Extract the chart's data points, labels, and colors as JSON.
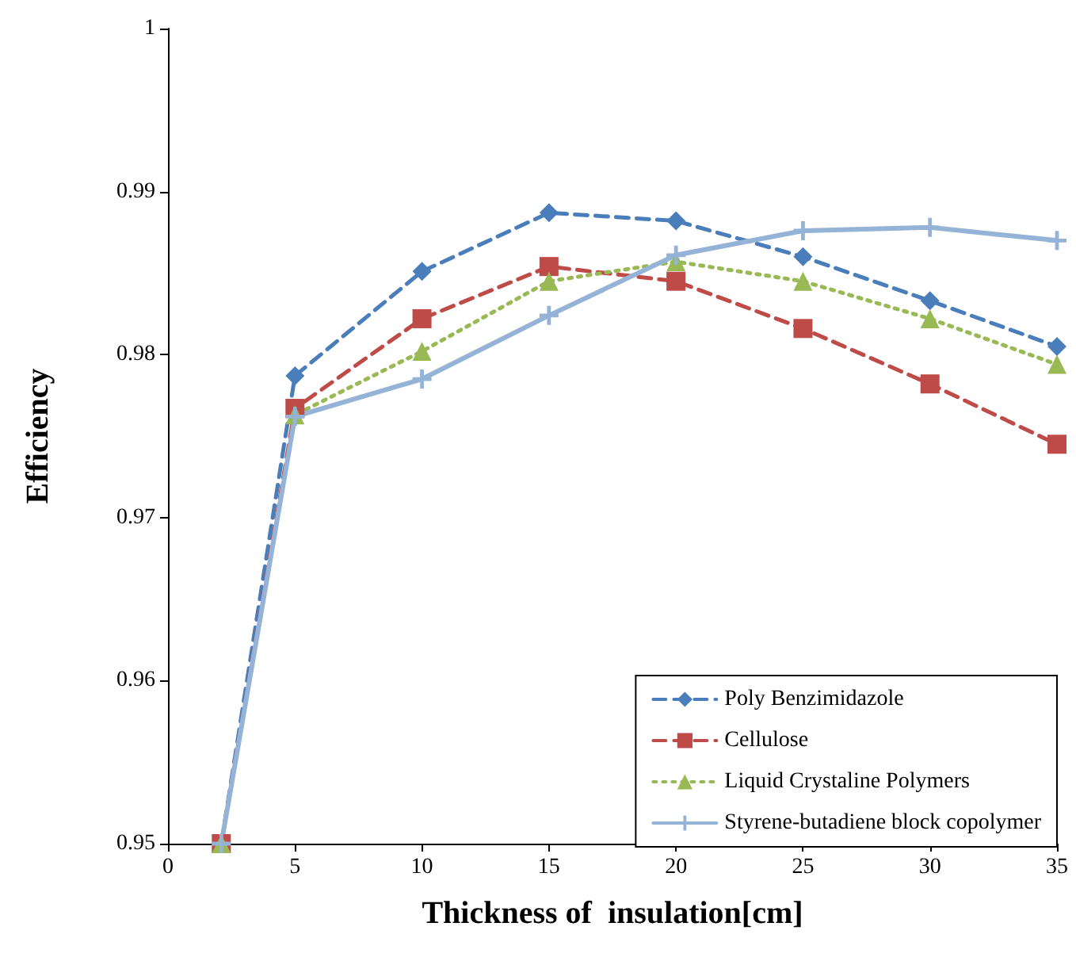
{
  "chart_data": {
    "type": "line",
    "xlabel": "Thickness of  insulation[cm]",
    "ylabel": "Efficiency",
    "x": [
      2.1,
      5,
      10,
      15,
      20,
      25,
      30,
      35
    ],
    "series": [
      {
        "name": "Poly Benzimidazole",
        "color": "#4a7ebb",
        "marker": "diamond",
        "line_style": "dashed",
        "values": [
          0.95,
          0.9787,
          0.9851,
          0.9887,
          0.9882,
          0.986,
          0.9833,
          0.9805
        ]
      },
      {
        "name": "Cellulose",
        "color": "#be4b48",
        "marker": "square",
        "line_style": "dashed",
        "values": [
          0.95,
          0.9767,
          0.9822,
          0.9854,
          0.9845,
          0.9816,
          0.9782,
          0.9745
        ]
      },
      {
        "name": "Liquid Crystaline Polymers",
        "color": "#98b954",
        "marker": "triangle",
        "line_style": "dotted",
        "values": [
          0.95,
          0.9763,
          0.9802,
          0.9845,
          0.9857,
          0.9845,
          0.9822,
          0.9794
        ]
      },
      {
        "name": "Styrene-butadiene block copolymer",
        "color": "#95b3d7",
        "marker": "cross",
        "line_style": "solid",
        "values": [
          0.95,
          0.9762,
          0.9785,
          0.9824,
          0.9861,
          0.9876,
          0.9878,
          0.987
        ]
      }
    ],
    "xlim": [
      0,
      35
    ],
    "xticks": [
      0,
      5,
      10,
      15,
      20,
      25,
      30,
      35
    ],
    "ylim": [
      0.95,
      1
    ],
    "yticks": [
      0.95,
      0.96,
      0.97,
      0.98,
      0.99,
      1
    ],
    "grid": false,
    "legend": "bottom right"
  }
}
